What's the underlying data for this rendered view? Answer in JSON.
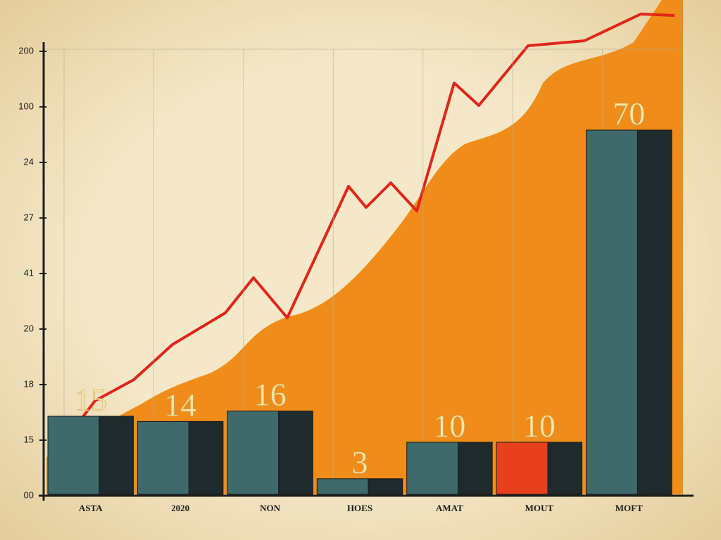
{
  "chart_data": {
    "type": "bar",
    "categories": [
      "ASTA",
      "2020",
      "NON",
      "HOES",
      "AMAT",
      "MOUT",
      "MOFT"
    ],
    "values": [
      15,
      14,
      16,
      3,
      10,
      10,
      70
    ],
    "colors": [
      "#3e6a6b",
      "#3e6a6b",
      "#3e6a6b",
      "#3e6a6b",
      "#3e6a6b",
      "#e8401c",
      "#3e6a6b"
    ],
    "y_axis_labels": [
      "200",
      "100",
      "24",
      "27",
      "41",
      "20",
      "18",
      "15",
      "00"
    ],
    "grid": true
  }
}
